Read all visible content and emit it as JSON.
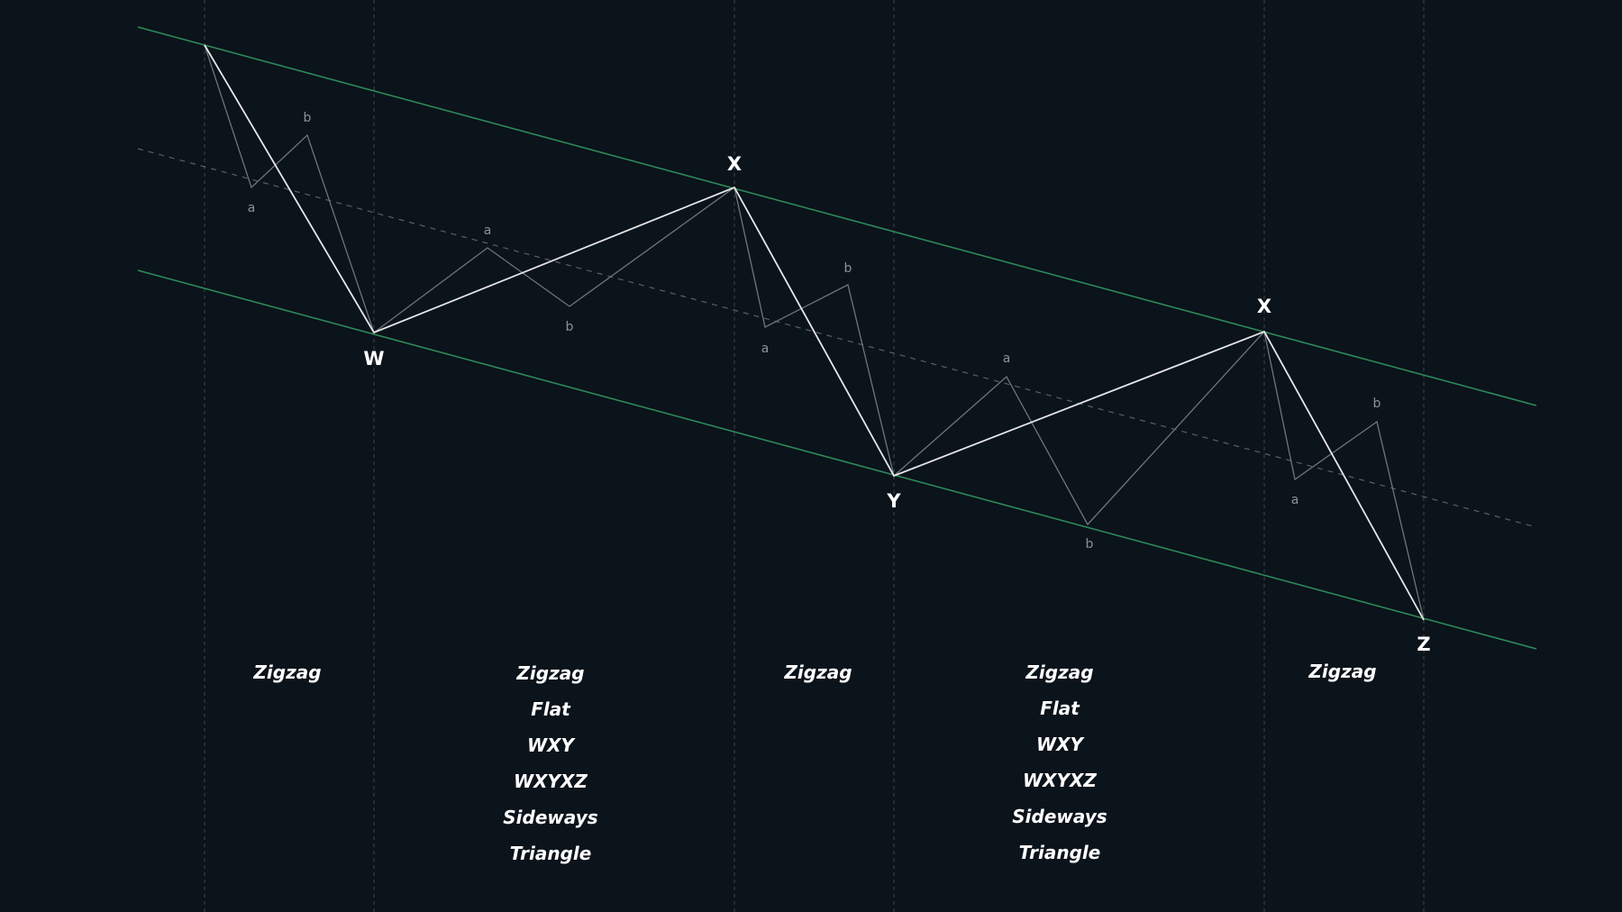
{
  "colors": {
    "background": "#0b131b",
    "channel": "#2e8b57",
    "midline": "#5a6068",
    "guide": "#3f454c",
    "major_path": "#e6e6e6",
    "minor_path": "#6f757c",
    "major_label": "#ffffff",
    "minor_label": "#8b9199",
    "text": "#ffffff"
  },
  "points": {
    "w": "W",
    "x1": "X",
    "y": "Y",
    "x2": "X",
    "z": "Z"
  },
  "sub_points": [
    {
      "id": "s1a",
      "label": "a"
    },
    {
      "id": "s1b",
      "label": "b"
    },
    {
      "id": "s2a",
      "label": "a"
    },
    {
      "id": "s2b",
      "label": "b"
    },
    {
      "id": "s3a",
      "label": "a"
    },
    {
      "id": "s3b",
      "label": "b"
    },
    {
      "id": "s4a",
      "label": "a"
    },
    {
      "id": "s4b",
      "label": "b"
    },
    {
      "id": "s5a",
      "label": "a"
    },
    {
      "id": "s5b",
      "label": "b"
    }
  ],
  "segments": [
    {
      "id": "seg-1",
      "patterns": [
        "Zigzag"
      ]
    },
    {
      "id": "seg-2",
      "patterns": [
        "Zigzag",
        "Flat",
        "WXY",
        "WXYXZ",
        "Sideways",
        "Triangle"
      ]
    },
    {
      "id": "seg-3",
      "patterns": [
        "Zigzag"
      ]
    },
    {
      "id": "seg-4",
      "patterns": [
        "Zigzag",
        "Flat",
        "WXY",
        "WXYXZ",
        "Sideways",
        "Triangle"
      ]
    },
    {
      "id": "seg-5",
      "patterns": [
        "Zigzag"
      ]
    }
  ]
}
